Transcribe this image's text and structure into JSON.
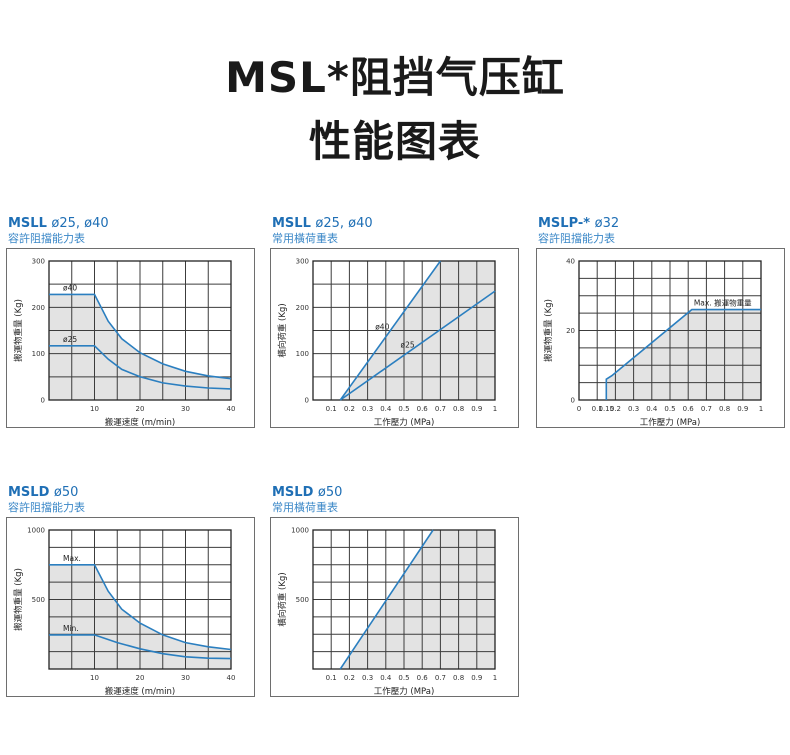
{
  "page": {
    "title_line1": "MSL*阻挡气压缸",
    "title_line2": "性能图表"
  },
  "chart_data": [
    {
      "id": "c1",
      "type": "line",
      "heading_model": "MSLL",
      "heading_bore": "ø25, ø40",
      "subtitle": "容許阻擋能力表",
      "xlabel": "搬運速度 (m/min)",
      "ylabel": "搬運物重量 (Kg)",
      "xlim": [
        0,
        40
      ],
      "ylim": [
        0,
        300
      ],
      "xticks": [
        {
          "v": 10,
          "label": "10"
        },
        {
          "v": 20,
          "label": "20"
        },
        {
          "v": 30,
          "label": "30"
        },
        {
          "v": 40,
          "label": "40"
        }
      ],
      "yticks": [
        {
          "v": 0,
          "label": "0"
        },
        {
          "v": 100,
          "label": "100"
        },
        {
          "v": 200,
          "label": "200"
        },
        {
          "v": 300,
          "label": "300"
        }
      ],
      "grid": {
        "xstep": 5,
        "ystep": 50
      },
      "series": [
        {
          "name": "ø40",
          "x": [
            0,
            10,
            13,
            16,
            20,
            25,
            30,
            35,
            40
          ],
          "y": [
            228,
            228,
            170,
            132,
            102,
            78,
            62,
            52,
            46
          ]
        },
        {
          "name": "ø25",
          "x": [
            0,
            10,
            13,
            16,
            20,
            25,
            30,
            35,
            40
          ],
          "y": [
            117,
            117,
            88,
            66,
            50,
            37,
            30,
            26,
            24
          ]
        }
      ],
      "fill_region": "below-series-0"
    },
    {
      "id": "c2",
      "type": "line",
      "heading_model": "MSLL",
      "heading_bore": "ø25, ø40",
      "subtitle": "常用橫荷重表",
      "xlabel": "工作壓力 (MPa)",
      "ylabel": "橫向荷重 (Kg)",
      "xlim": [
        0,
        1
      ],
      "ylim": [
        0,
        300
      ],
      "xticks": [
        {
          "v": 0.1,
          "label": "0.1"
        },
        {
          "v": 0.2,
          "label": "0.2"
        },
        {
          "v": 0.3,
          "label": "0.3"
        },
        {
          "v": 0.4,
          "label": "0.4"
        },
        {
          "v": 0.5,
          "label": "0.5"
        },
        {
          "v": 0.6,
          "label": "0.6"
        },
        {
          "v": 0.7,
          "label": "0.7"
        },
        {
          "v": 0.8,
          "label": "0.8"
        },
        {
          "v": 0.9,
          "label": "0.9"
        },
        {
          "v": 1,
          "label": "1"
        }
      ],
      "yticks": [
        {
          "v": 0,
          "label": "0"
        },
        {
          "v": 100,
          "label": "100"
        },
        {
          "v": 200,
          "label": "200"
        },
        {
          "v": 300,
          "label": "300"
        }
      ],
      "grid": {
        "xstep": 0.1,
        "ystep": 50
      },
      "series": [
        {
          "name": "ø40",
          "x": [
            0.15,
            0.7
          ],
          "y": [
            0,
            300
          ]
        },
        {
          "name": "ø25",
          "x": [
            0.15,
            1
          ],
          "y": [
            0,
            235
          ]
        }
      ],
      "fill_region": "right-of-series-0"
    },
    {
      "id": "c3",
      "type": "line",
      "heading_model": "MSLP-*",
      "heading_bore": "ø32",
      "subtitle": "容許阻擋能力表",
      "xlabel": "工作壓力 (MPa)",
      "ylabel": "搬運物重量 (Kg)",
      "xlim": [
        0,
        1
      ],
      "ylim": [
        0,
        40
      ],
      "xticks": [
        {
          "v": 0,
          "label": "0"
        },
        {
          "v": 0.1,
          "label": "0.1"
        },
        {
          "v": 0.15,
          "label": "0.15"
        },
        {
          "v": 0.2,
          "label": "0.2"
        },
        {
          "v": 0.3,
          "label": "0.3"
        },
        {
          "v": 0.4,
          "label": "0.4"
        },
        {
          "v": 0.5,
          "label": "0.5"
        },
        {
          "v": 0.6,
          "label": "0.6"
        },
        {
          "v": 0.7,
          "label": "0.7"
        },
        {
          "v": 0.8,
          "label": "0.8"
        },
        {
          "v": 0.9,
          "label": "0.9"
        },
        {
          "v": 1,
          "label": "1"
        }
      ],
      "yticks": [
        {
          "v": 0,
          "label": "0"
        },
        {
          "v": 20,
          "label": "20"
        },
        {
          "v": 40,
          "label": "40"
        }
      ],
      "grid": {
        "xstep": 0.1,
        "ystep": 5
      },
      "series": [
        {
          "name": "Max. 搬運物重量",
          "x": [
            0.15,
            0.15,
            0.18,
            0.62,
            1
          ],
          "y": [
            0,
            6,
            7,
            26,
            26
          ]
        }
      ],
      "fill_region": "below-series-0"
    },
    {
      "id": "c4",
      "type": "line",
      "heading_model": "MSLD",
      "heading_bore": "ø50",
      "subtitle": "容許阻擋能力表",
      "xlabel": "搬運速度 (m/min)",
      "ylabel": "搬運物重量 (Kg)",
      "xlim": [
        0,
        40
      ],
      "ylim": [
        0,
        1000
      ],
      "xticks": [
        {
          "v": 10,
          "label": "10"
        },
        {
          "v": 20,
          "label": "20"
        },
        {
          "v": 30,
          "label": "30"
        },
        {
          "v": 40,
          "label": "40"
        }
      ],
      "yticks": [
        {
          "v": 500,
          "label": "500"
        },
        {
          "v": 1000,
          "label": "1000"
        }
      ],
      "grid": {
        "xstep": 5,
        "ystep": 125
      },
      "series": [
        {
          "name": "Max.",
          "x": [
            0,
            10,
            13,
            16,
            20,
            25,
            30,
            35,
            40
          ],
          "y": [
            750,
            750,
            560,
            430,
            330,
            245,
            190,
            160,
            140
          ]
        },
        {
          "name": "Min.",
          "x": [
            0,
            10,
            15,
            20,
            25,
            30,
            35,
            40
          ],
          "y": [
            245,
            245,
            190,
            145,
            110,
            88,
            78,
            75
          ]
        }
      ],
      "fill_region": "below-series-0"
    },
    {
      "id": "c5",
      "type": "line",
      "heading_model": "MSLD",
      "heading_bore": "ø50",
      "subtitle": "常用橫荷重表",
      "xlabel": "工作壓力 (MPa)",
      "ylabel": "橫向荷重 (Kg)",
      "xlim": [
        0,
        1
      ],
      "ylim": [
        0,
        1000
      ],
      "xticks": [
        {
          "v": 0.1,
          "label": "0.1"
        },
        {
          "v": 0.2,
          "label": "0.2"
        },
        {
          "v": 0.3,
          "label": "0.3"
        },
        {
          "v": 0.4,
          "label": "0.4"
        },
        {
          "v": 0.5,
          "label": "0.5"
        },
        {
          "v": 0.6,
          "label": "0.6"
        },
        {
          "v": 0.7,
          "label": "0.7"
        },
        {
          "v": 0.8,
          "label": "0.8"
        },
        {
          "v": 0.9,
          "label": "0.9"
        },
        {
          "v": 1,
          "label": "1"
        }
      ],
      "yticks": [
        {
          "v": 500,
          "label": "500"
        },
        {
          "v": 1000,
          "label": "1000"
        }
      ],
      "grid": {
        "xstep": 0.1,
        "ystep": 125
      },
      "series": [
        {
          "name": "",
          "x": [
            0.15,
            0.66
          ],
          "y": [
            0,
            1000
          ]
        }
      ],
      "fill_region": "right-of-series-0"
    }
  ]
}
